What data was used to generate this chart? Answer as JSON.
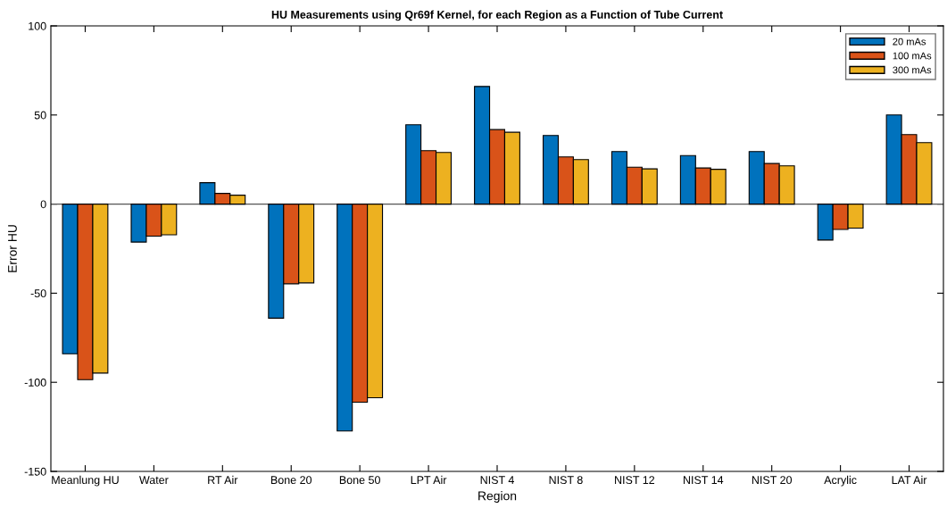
{
  "chart_data": {
    "type": "bar",
    "title": "HU Measurements using Qr69f Kernel, for each Region as a Function of Tube Current",
    "xlabel": "Region",
    "ylabel": "Error HU",
    "categories": [
      "Meanlung HU",
      "Water",
      "RT Air",
      "Bone 20",
      "Bone 50",
      "LPT Air",
      "NIST 4",
      "NIST 8",
      "NIST 12",
      "NIST 14",
      "NIST 20",
      "Acrylic",
      "LAT Air"
    ],
    "series": [
      {
        "name": "20 mAs",
        "color": "#0072bd",
        "values": [
          -84,
          -21.3,
          12,
          -64,
          -127.3,
          44.5,
          66,
          38.5,
          29.5,
          27.2,
          29.5,
          -20.2,
          50
        ]
      },
      {
        "name": "100 mAs",
        "color": "#d95319",
        "values": [
          -98.5,
          -18,
          6,
          -44.7,
          -111.2,
          30,
          41.8,
          26.5,
          20.7,
          20.3,
          22.8,
          -14.2,
          39
        ]
      },
      {
        "name": "300 mAs",
        "color": "#edb120",
        "values": [
          -94.8,
          -17.2,
          5,
          -44.2,
          -108.7,
          29,
          40.3,
          25,
          19.8,
          19.5,
          21.5,
          -13.5,
          34.5
        ]
      }
    ],
    "ylim": [
      -150,
      100
    ],
    "yticks": [
      -150,
      -100,
      -50,
      0,
      50,
      100
    ],
    "ref_lines": [
      {
        "axis": "y",
        "value": 0,
        "color": "#555555"
      }
    ],
    "grid": false,
    "legend": "top right"
  }
}
